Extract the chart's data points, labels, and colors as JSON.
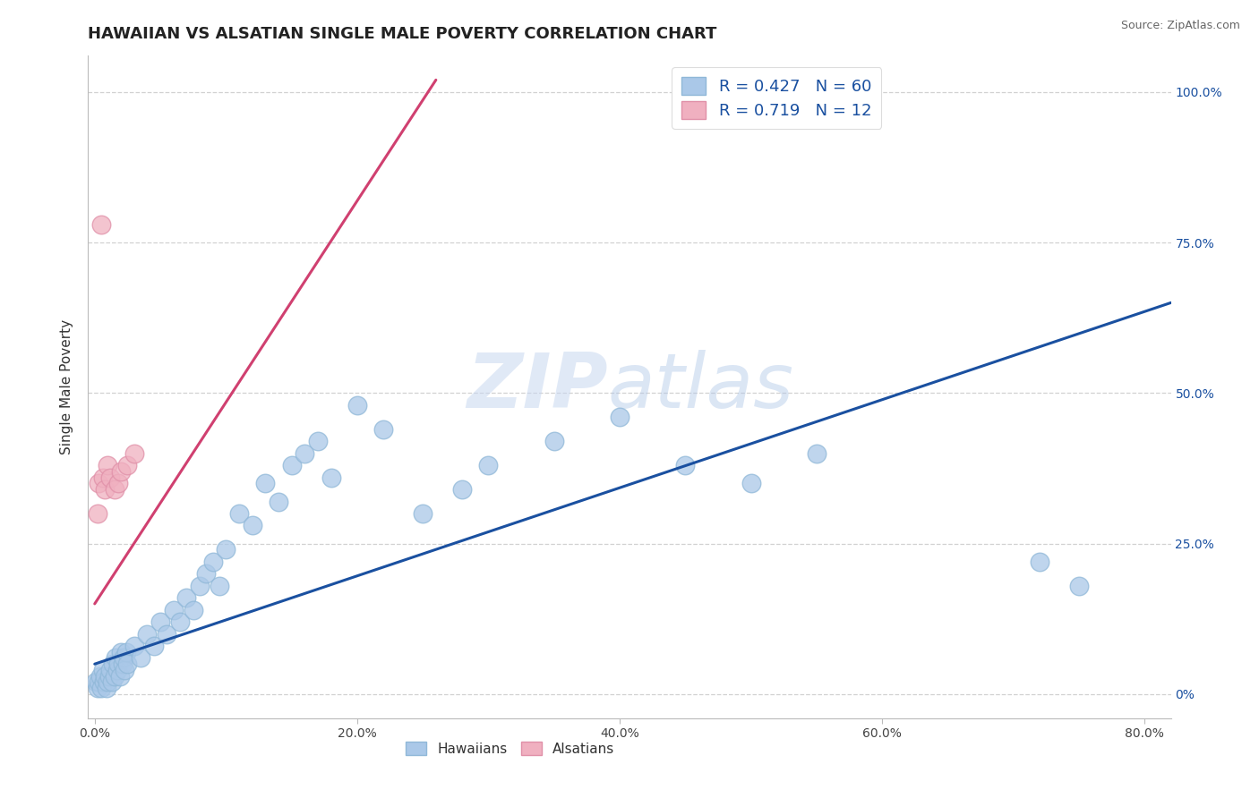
{
  "title": "HAWAIIAN VS ALSATIAN SINGLE MALE POVERTY CORRELATION CHART",
  "source_text": "Source: ZipAtlas.com",
  "ylabel": "Single Male Poverty",
  "watermark_zip": "ZIP",
  "watermark_atlas": "atlas",
  "xlim": [
    -0.005,
    0.82
  ],
  "ylim": [
    -0.04,
    1.06
  ],
  "xticks": [
    0.0,
    0.2,
    0.4,
    0.6,
    0.8
  ],
  "xtick_labels": [
    "0.0%",
    "20.0%",
    "40.0%",
    "60.0%",
    "80.0%"
  ],
  "ytick_labels_right": [
    "0%",
    "25.0%",
    "50.0%",
    "75.0%",
    "100.0%"
  ],
  "ytick_vals_right": [
    0.0,
    0.25,
    0.5,
    0.75,
    1.0
  ],
  "hawaiian_color": "#aac8e8",
  "alsatian_color": "#f0b0c0",
  "hawaiian_line_color": "#1a50a0",
  "alsatian_line_color": "#d04070",
  "legend_R_hawaiian": "0.427",
  "legend_N_hawaiian": "60",
  "legend_R_alsatian": "0.719",
  "legend_N_alsatian": "12",
  "background_color": "#ffffff",
  "grid_color": "#cccccc",
  "hawaiian_x": [
    0.001,
    0.002,
    0.003,
    0.004,
    0.005,
    0.006,
    0.007,
    0.008,
    0.009,
    0.01,
    0.011,
    0.012,
    0.013,
    0.014,
    0.015,
    0.016,
    0.017,
    0.018,
    0.019,
    0.02,
    0.021,
    0.022,
    0.023,
    0.024,
    0.025,
    0.03,
    0.035,
    0.04,
    0.045,
    0.05,
    0.055,
    0.06,
    0.065,
    0.07,
    0.075,
    0.08,
    0.085,
    0.09,
    0.095,
    0.1,
    0.11,
    0.12,
    0.13,
    0.14,
    0.15,
    0.16,
    0.17,
    0.18,
    0.2,
    0.22,
    0.25,
    0.28,
    0.3,
    0.35,
    0.4,
    0.45,
    0.5,
    0.55,
    0.72,
    0.75
  ],
  "hawaiian_y": [
    0.02,
    0.01,
    0.02,
    0.03,
    0.01,
    0.04,
    0.02,
    0.03,
    0.01,
    0.02,
    0.03,
    0.04,
    0.02,
    0.05,
    0.03,
    0.06,
    0.04,
    0.05,
    0.03,
    0.07,
    0.05,
    0.06,
    0.04,
    0.07,
    0.05,
    0.08,
    0.06,
    0.1,
    0.08,
    0.12,
    0.1,
    0.14,
    0.12,
    0.16,
    0.14,
    0.18,
    0.2,
    0.22,
    0.18,
    0.24,
    0.3,
    0.28,
    0.35,
    0.32,
    0.38,
    0.4,
    0.42,
    0.36,
    0.48,
    0.44,
    0.3,
    0.34,
    0.38,
    0.42,
    0.46,
    0.38,
    0.35,
    0.4,
    0.22,
    0.18
  ],
  "alsatian_x": [
    0.002,
    0.003,
    0.005,
    0.006,
    0.008,
    0.01,
    0.012,
    0.015,
    0.018,
    0.02,
    0.025,
    0.03
  ],
  "alsatian_y": [
    0.3,
    0.35,
    0.78,
    0.36,
    0.34,
    0.38,
    0.36,
    0.34,
    0.35,
    0.37,
    0.38,
    0.4
  ],
  "hawaiian_trend_x": [
    0.0,
    0.82
  ],
  "hawaiian_trend_y": [
    0.05,
    0.65
  ],
  "alsatian_trend_x": [
    0.0,
    0.26
  ],
  "alsatian_trend_y": [
    0.15,
    1.02
  ],
  "title_fontsize": 13,
  "axis_label_fontsize": 11,
  "tick_fontsize": 10,
  "legend_fontsize": 13
}
